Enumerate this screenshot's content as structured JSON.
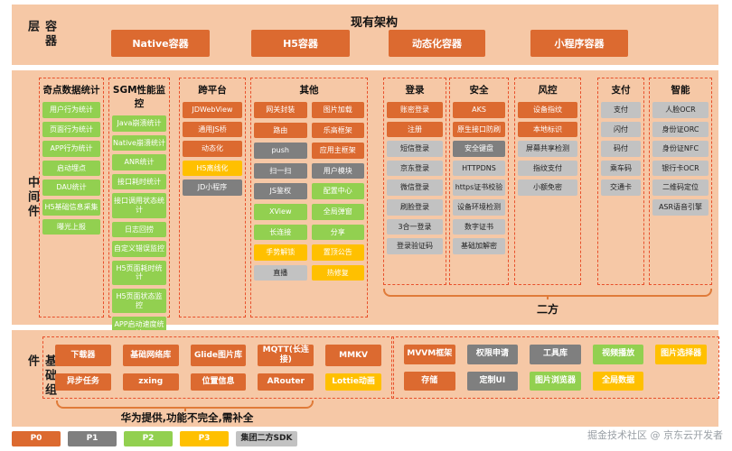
{
  "meta": {
    "title": "现有架构",
    "watermark": "掘金技术社区 @ 京东云开发者"
  },
  "colors": {
    "p0": "#DC6A30",
    "p1": "#7F7F7F",
    "p2": "#92D050",
    "p3": "#FFC000",
    "sdk2": "#C2C2C2",
    "band": "#F6C8A6",
    "dash": "#E8502B",
    "brace": "#E07B39"
  },
  "layers": {
    "container": {
      "label": "容器层",
      "boxes": [
        "Native容器",
        "H5容器",
        "动态化容器",
        "小程序容器"
      ]
    },
    "middleware": {
      "label": "中间件",
      "brace_label": "二方",
      "columns": [
        {
          "title": "奇点数据统计",
          "items": [
            {
              "label": "用户行为统计",
              "level": "p2"
            },
            {
              "label": "页面行为统计",
              "level": "p2"
            },
            {
              "label": "APP行为统计",
              "level": "p2"
            },
            {
              "label": "启动埋点",
              "level": "p2"
            },
            {
              "label": "DAU统计",
              "level": "p2"
            },
            {
              "label": "H5基础信息采集",
              "level": "p2"
            },
            {
              "label": "曝光上报",
              "level": "p2"
            }
          ]
        },
        {
          "title": "SGM性能监控",
          "items": [
            {
              "label": "Java崩溃统计",
              "level": "p2"
            },
            {
              "label": "Native崩溃统计",
              "level": "p2"
            },
            {
              "label": "ANR统计",
              "level": "p2"
            },
            {
              "label": "接口耗时统计",
              "level": "p2"
            },
            {
              "label": "接口调用状态统计",
              "level": "p2"
            },
            {
              "label": "日志回捞",
              "level": "p2"
            },
            {
              "label": "自定义错误监控",
              "level": "p2"
            },
            {
              "label": "H5页面耗时统计",
              "level": "p2"
            },
            {
              "label": "H5页面状态监控",
              "level": "p2"
            },
            {
              "label": "APP启动速度统计",
              "level": "p2"
            }
          ]
        },
        {
          "title": "跨平台",
          "items": [
            {
              "label": "JDWebView",
              "level": "p0"
            },
            {
              "label": "通用JS桥",
              "level": "p0"
            },
            {
              "label": "动态化",
              "level": "p0"
            },
            {
              "label": "H5离线化",
              "level": "p3"
            },
            {
              "label": "JD小程序",
              "level": "p1"
            }
          ]
        },
        {
          "title": "其他",
          "grid": true,
          "items": [
            {
              "label": "网关封装",
              "level": "p0"
            },
            {
              "label": "图片加载",
              "level": "p0"
            },
            {
              "label": "路由",
              "level": "p0"
            },
            {
              "label": "乐高框架",
              "level": "p0"
            },
            {
              "label": "push",
              "level": "p1"
            },
            {
              "label": "应用主框架",
              "level": "p0"
            },
            {
              "label": "扫一扫",
              "level": "p1"
            },
            {
              "label": "用户模块",
              "level": "p1"
            },
            {
              "label": "JS鉴权",
              "level": "p1"
            },
            {
              "label": "配置中心",
              "level": "p2"
            },
            {
              "label": "XView",
              "level": "p2"
            },
            {
              "label": "全局弹窗",
              "level": "p2"
            },
            {
              "label": "长连接",
              "level": "p2"
            },
            {
              "label": "分享",
              "level": "p2"
            },
            {
              "label": "手势解锁",
              "level": "p3"
            },
            {
              "label": "置顶公告",
              "level": "p3"
            },
            {
              "label": "直播",
              "level": "sdk2"
            },
            {
              "label": "热修复",
              "level": "p3"
            }
          ]
        },
        {
          "title": "登录",
          "items": [
            {
              "label": "账密登录",
              "level": "p0"
            },
            {
              "label": "注册",
              "level": "p0"
            },
            {
              "label": "短信登录",
              "level": "sdk2"
            },
            {
              "label": "京东登录",
              "level": "sdk2"
            },
            {
              "label": "微信登录",
              "level": "sdk2"
            },
            {
              "label": "刷脸登录",
              "level": "sdk2"
            },
            {
              "label": "3合一登录",
              "level": "sdk2"
            },
            {
              "label": "登录验证码",
              "level": "sdk2"
            }
          ]
        },
        {
          "title": "安全",
          "items": [
            {
              "label": "AKS",
              "level": "p0"
            },
            {
              "label": "原生接口防刷",
              "level": "p0"
            },
            {
              "label": "安全键盘",
              "level": "p1"
            },
            {
              "label": "HTTPDNS",
              "level": "sdk2"
            },
            {
              "label": "https证书校验",
              "level": "sdk2"
            },
            {
              "label": "设备环境检测",
              "level": "sdk2"
            },
            {
              "label": "数字证书",
              "level": "sdk2"
            },
            {
              "label": "基础加解密",
              "level": "sdk2"
            }
          ]
        },
        {
          "title": "风控",
          "items": [
            {
              "label": "设备指纹",
              "level": "p0"
            },
            {
              "label": "本地标识",
              "level": "p0"
            },
            {
              "label": "屏幕共享检测",
              "level": "sdk2"
            },
            {
              "label": "指纹支付",
              "level": "sdk2"
            },
            {
              "label": "小额免密",
              "level": "sdk2"
            }
          ]
        },
        {
          "title": "支付",
          "items": [
            {
              "label": "支付",
              "level": "sdk2"
            },
            {
              "label": "闪付",
              "level": "sdk2"
            },
            {
              "label": "码付",
              "level": "sdk2"
            },
            {
              "label": "乘车码",
              "level": "sdk2"
            },
            {
              "label": "交通卡",
              "level": "sdk2"
            }
          ]
        },
        {
          "title": "智能",
          "items": [
            {
              "label": "人脸OCR",
              "level": "sdk2"
            },
            {
              "label": "身份证ORC",
              "level": "sdk2"
            },
            {
              "label": "身份证NFC",
              "level": "sdk2"
            },
            {
              "label": "银行卡OCR",
              "level": "sdk2"
            },
            {
              "label": "二维码定位",
              "level": "sdk2"
            },
            {
              "label": "ASR语音引擎",
              "level": "sdk2"
            }
          ]
        }
      ]
    },
    "foundation": {
      "label": "基础组件",
      "note": "华为提供,功能不完全,需补全",
      "group1": [
        {
          "label": "下载器",
          "level": "p0"
        },
        {
          "label": "基础网络库",
          "level": "p0"
        },
        {
          "label": "Glide图片库",
          "level": "p0"
        },
        {
          "label": "MQTT(长连接)",
          "level": "p0"
        },
        {
          "label": "MMKV",
          "level": "p0"
        },
        {
          "label": "异步任务",
          "level": "p0"
        },
        {
          "label": "zxing",
          "level": "p0"
        },
        {
          "label": "位置信息",
          "level": "p0"
        },
        {
          "label": "ARouter",
          "level": "p0"
        },
        {
          "label": "Lottie动画",
          "level": "p3"
        }
      ],
      "group2": [
        {
          "label": "MVVM框架",
          "level": "p0"
        },
        {
          "label": "权限申请",
          "level": "p1"
        },
        {
          "label": "工具库",
          "level": "p1"
        },
        {
          "label": "视频播放",
          "level": "p2"
        },
        {
          "label": "图片选择器",
          "level": "p3"
        },
        {
          "label": "存储",
          "level": "p0"
        },
        {
          "label": "定制UI",
          "level": "p1"
        },
        {
          "label": "图片浏览器",
          "level": "p2"
        },
        {
          "label": "全局数据",
          "level": "p3"
        }
      ]
    }
  },
  "legend": [
    {
      "label": "P0",
      "level": "p0"
    },
    {
      "label": "P1",
      "level": "p1"
    },
    {
      "label": "P2",
      "level": "p2"
    },
    {
      "label": "P3",
      "level": "p3"
    },
    {
      "label": "集团二方SDK",
      "level": "sdk2"
    }
  ]
}
